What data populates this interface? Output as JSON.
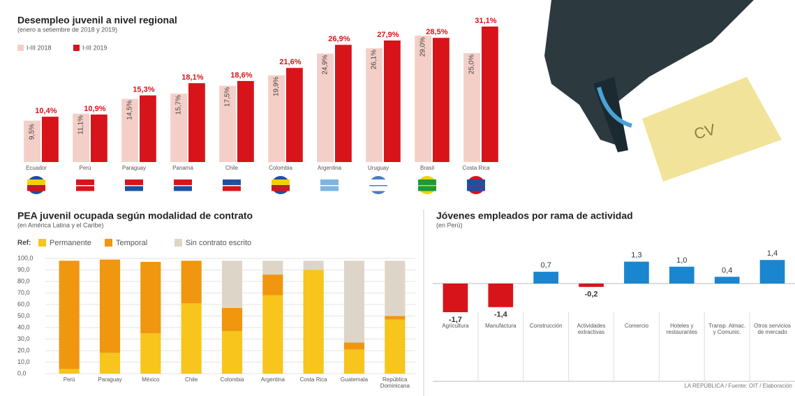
{
  "chart_data": [
    {
      "type": "bar",
      "title": "Desempleo juvenil a nivel regional",
      "subtitle": "(enero a setiembre de 2018 y 2019)",
      "categories": [
        "Ecuador",
        "Perú",
        "Paraguay",
        "Panamá",
        "Chile",
        "Colombia",
        "Argentina",
        "Uruguay",
        "Brasil",
        "Costa Rica"
      ],
      "series": [
        {
          "name": "I-III 2018",
          "color": "#f4cfc8",
          "values": [
            9.5,
            11.1,
            14.5,
            15.7,
            17.5,
            19.9,
            24.9,
            26.1,
            29.0,
            25.0
          ],
          "value_labels": [
            "9,5%",
            "11,1%",
            "14,5%",
            "15,7%",
            "17,5%",
            "19,9%",
            "24,9%",
            "26,1%",
            "29,0%",
            "25,0%"
          ]
        },
        {
          "name": "I-III 2019",
          "color": "#d7141a",
          "values": [
            10.4,
            10.9,
            15.3,
            18.1,
            18.6,
            21.6,
            26.9,
            27.9,
            28.5,
            31.1
          ],
          "value_labels": [
            "10,4%",
            "10,9%",
            "15,3%",
            "18,1%",
            "18,6%",
            "21,6%",
            "26,9%",
            "27,9%",
            "28,5%",
            "31,1%"
          ]
        }
      ]
    },
    {
      "type": "stacked_bar",
      "title": "PEA juvenil ocupada según modalidad de contrato",
      "subtitle": "(en América Latina y el Caribe)",
      "legend_title": "Ref:",
      "categories": [
        "Perú",
        "Paraguay",
        "México",
        "Chile",
        "Colombia",
        "Argentina",
        "Costa Rica",
        "Guatemala",
        "República Dominicana"
      ],
      "series": [
        {
          "name": "Permanente",
          "color": "#f7c51c",
          "values": [
            4,
            18,
            35,
            61,
            37,
            68,
            90,
            21,
            47
          ]
        },
        {
          "name": "Temporal",
          "color": "#f0960f",
          "values": [
            94,
            81,
            62,
            37,
            20,
            18,
            0,
            6,
            3
          ]
        },
        {
          "name": "Sin contrato escrito",
          "color": "#ddd6c8",
          "values": [
            0,
            0,
            0,
            0,
            41,
            12,
            8,
            71,
            48
          ]
        }
      ],
      "ylim": [
        0,
        100
      ],
      "yticks": [
        {
          "value": 0,
          "label": "0,0"
        },
        {
          "value": 10,
          "label": "10,0"
        },
        {
          "value": 20,
          "label": "20,0"
        },
        {
          "value": 30,
          "label": "30,0"
        },
        {
          "value": 40,
          "label": "40,0"
        },
        {
          "value": 50,
          "label": "50,0"
        },
        {
          "value": 60,
          "label": "60,0"
        },
        {
          "value": 70,
          "label": "70,0"
        },
        {
          "value": 80,
          "label": "80,0"
        },
        {
          "value": 90,
          "label": "90,0"
        },
        {
          "value": 100,
          "label": "100,0"
        }
      ],
      "grid": true
    },
    {
      "type": "bar",
      "title": "Jóvenes empleados por rama de actividad",
      "subtitle": "(en Perú)",
      "categories": [
        "Agricultura",
        "Manufactura",
        "Construcción",
        "Actividades extractivas",
        "Comercio",
        "Hoteles y restaurantes",
        "Transp. Almac. y Comunic.",
        "Otros servicios de mercado"
      ],
      "values": [
        -1.7,
        -1.4,
        0.7,
        -0.2,
        1.3,
        1.0,
        0.4,
        1.4
      ],
      "value_labels": [
        "-1,7",
        "-1,4",
        "0,7",
        "-0,2",
        "1,3",
        "1,0",
        "0,4",
        "1,4"
      ],
      "positive_color": "#1a86cf",
      "negative_color": "#d7141a"
    }
  ],
  "illustration": {
    "label": "CV"
  },
  "source": "LA REPÚBLICA / Fuente: OIT / Elaboración"
}
